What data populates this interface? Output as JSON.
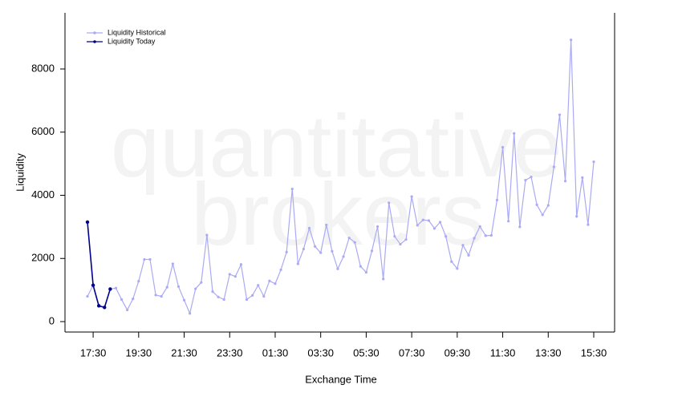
{
  "chart_data": {
    "type": "line",
    "watermark": [
      "quantitative",
      "brokers"
    ],
    "x_label": "Exchange Time",
    "y_label": "Liquidity",
    "categories": [
      null,
      "17:30",
      null,
      null,
      null,
      null,
      null,
      null,
      null,
      "19:30",
      null,
      null,
      null,
      null,
      null,
      null,
      null,
      "21:30",
      null,
      null,
      null,
      null,
      null,
      null,
      null,
      "23:30",
      null,
      null,
      null,
      null,
      null,
      null,
      null,
      "01:30",
      null,
      null,
      null,
      null,
      null,
      null,
      null,
      "03:30",
      null,
      null,
      null,
      null,
      null,
      null,
      null,
      "05:30",
      null,
      null,
      null,
      null,
      null,
      null,
      null,
      "07:30",
      null,
      null,
      null,
      null,
      null,
      null,
      null,
      "09:30",
      null,
      null,
      null,
      null,
      null,
      null,
      null,
      "11:30",
      null,
      null,
      null,
      null,
      null,
      null,
      null,
      "13:30",
      null,
      null,
      null,
      null,
      null,
      null,
      null,
      "15:30"
    ],
    "series": [
      {
        "name": "Liquidity Historical",
        "color": "#aaaaf5",
        "values": [
          800,
          1150,
          500,
          450,
          1030,
          1060,
          700,
          370,
          720,
          1280,
          1970,
          1970,
          840,
          800,
          1090,
          1830,
          1110,
          680,
          260,
          1040,
          1240,
          2740,
          950,
          780,
          700,
          1500,
          1430,
          1810,
          700,
          830,
          1150,
          800,
          1290,
          1200,
          1640,
          2200,
          4200,
          1830,
          2300,
          2960,
          2380,
          2180,
          3060,
          2230,
          1670,
          2060,
          2650,
          2510,
          1750,
          1560,
          2240,
          3010,
          1350,
          3760,
          2700,
          2450,
          2600,
          3960,
          3050,
          3220,
          3200,
          2950,
          3150,
          2700,
          1900,
          1680,
          2420,
          2100,
          2640,
          3010,
          2720,
          2730,
          3850,
          5520,
          3180,
          5960,
          3000,
          4480,
          4580,
          3700,
          3380,
          3680,
          4900,
          6550,
          4450,
          8920,
          3330,
          4560,
          3070,
          5060
        ]
      },
      {
        "name": "Liquidity Today",
        "color": "#00008b",
        "values": [
          3150,
          1150,
          500,
          450,
          1030,
          null,
          null,
          null,
          null,
          null,
          null,
          null,
          null,
          null,
          null,
          null,
          null,
          null,
          null,
          null,
          null,
          null,
          null,
          null,
          null,
          null,
          null,
          null,
          null,
          null,
          null,
          null,
          null,
          null,
          null,
          null,
          null,
          null,
          null,
          null,
          null,
          null,
          null,
          null,
          null,
          null,
          null,
          null,
          null,
          null,
          null,
          null,
          null,
          null,
          null,
          null,
          null,
          null,
          null,
          null,
          null,
          null,
          null,
          null,
          null,
          null,
          null,
          null,
          null,
          null,
          null,
          null,
          null,
          null,
          null,
          null,
          null,
          null,
          null,
          null,
          null,
          null,
          null,
          null,
          null,
          null,
          null,
          null,
          null,
          null
        ]
      }
    ],
    "ylim": [
      -330,
      9778
    ],
    "yticks": [
      0,
      2000,
      4000,
      6000,
      8000
    ],
    "legend": "top-left"
  }
}
